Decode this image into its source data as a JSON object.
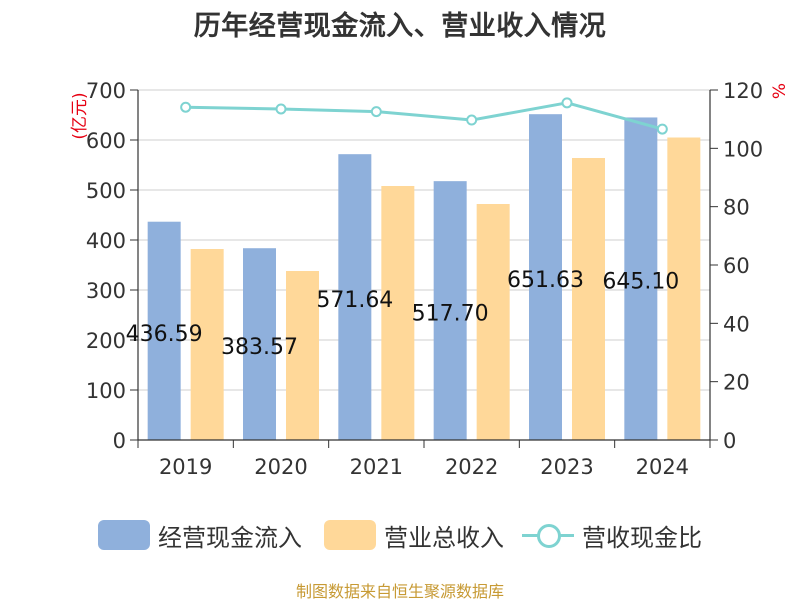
{
  "chart_data": {
    "type": "bar",
    "title": "历年经营现金流入、营业收入情况",
    "left_unit": "(亿元)",
    "right_unit": "%",
    "categories": [
      "2019",
      "2020",
      "2021",
      "2022",
      "2023",
      "2024"
    ],
    "left_axis": {
      "min": 0,
      "max": 700,
      "ticks": [
        "0",
        "100",
        "200",
        "300",
        "400",
        "500",
        "600",
        "700"
      ]
    },
    "right_axis": {
      "min": 0,
      "max": 120,
      "ticks": [
        "0",
        "20",
        "40",
        "60",
        "80",
        "100",
        "120"
      ]
    },
    "grid": true,
    "legend_position": "bottom",
    "series": [
      {
        "name": "经营现金流入",
        "type": "bar",
        "axis": "left",
        "color": "#8fb0dc",
        "values": [
          436.59,
          383.57,
          571.64,
          517.7,
          651.63,
          645.1
        ],
        "labels": [
          "436.59",
          "383.57",
          "571.64",
          "517.70",
          "651.63",
          "645.10"
        ]
      },
      {
        "name": "营业总收入",
        "type": "bar",
        "axis": "left",
        "color": "#ffd899",
        "values": [
          382,
          338,
          508,
          472,
          564,
          605
        ]
      },
      {
        "name": "营收现金比",
        "type": "line",
        "axis": "right",
        "color": "#7ed3d1",
        "values": [
          114.1,
          113.5,
          112.6,
          109.7,
          115.6,
          106.6
        ]
      }
    ]
  },
  "footer": {
    "source": "制图数据来自恒生聚源数据库"
  }
}
